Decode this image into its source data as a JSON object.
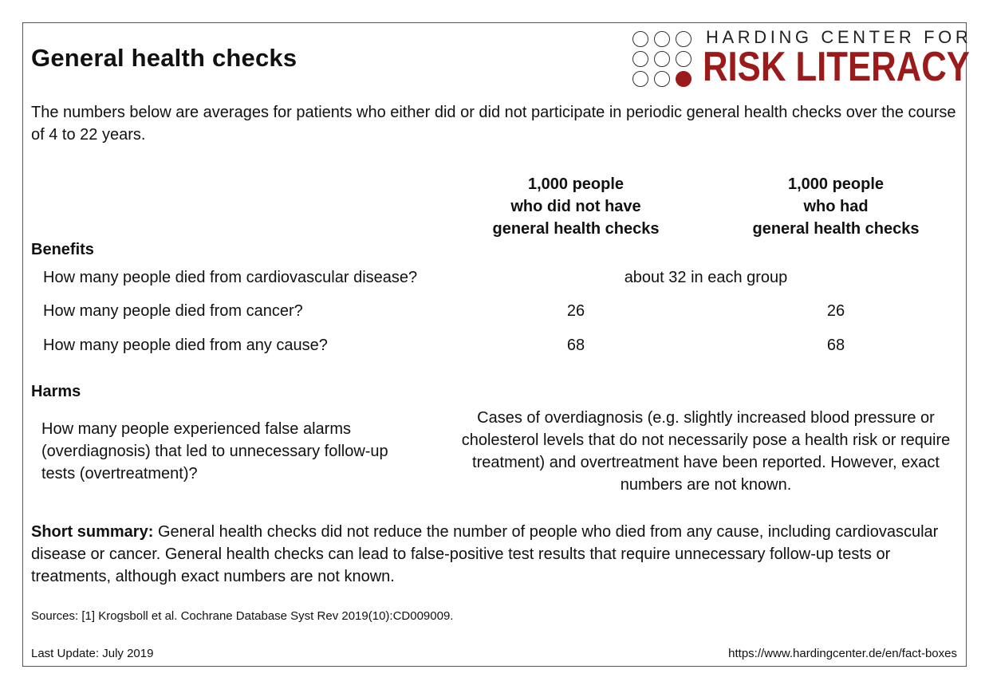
{
  "title": "General health checks",
  "intro": "The numbers below are averages for patients who either did or did not participate in periodic general health checks over the course of 4 to 22 years.",
  "logo": {
    "line1": "HARDING CENTER FOR",
    "line2": "RISK LITERACY",
    "accent_color": "#9b1b1b"
  },
  "columns": [
    {
      "line1": "1,000 people",
      "line2": "who did not have",
      "line3": "general health checks"
    },
    {
      "line1": "1,000 people",
      "line2": "who had",
      "line3": "general health checks"
    }
  ],
  "benefits": {
    "heading": "Benefits",
    "rows": [
      {
        "question": "How many people died from cardiovascular disease?",
        "merged": "about 32 in each group"
      },
      {
        "question": "How many people died from cancer?",
        "no_checks": "26",
        "checks": "26"
      },
      {
        "question": "How many people died from any cause?",
        "no_checks": "68",
        "checks": "68"
      }
    ]
  },
  "harms": {
    "heading": "Harms",
    "question": "How many people experienced false alarms (overdiagnosis) that led to unnecessary follow-up tests (overtreatment)?",
    "answer": "Cases of overdiagnosis (e.g. slightly increased blood pressure or cholesterol levels that do not necessarily pose a health risk or require treatment) and overtreatment have been reported. However, exact numbers are not known."
  },
  "summary": {
    "label": "Short summary:",
    "text": "General health checks did not reduce the number of people who died from any cause, including cardiovascular disease or cancer. General health checks can lead to false-positive test results that require unnecessary follow-up tests or treatments, although exact numbers are not known."
  },
  "sources": "Sources: [1] Krogsboll et al. Cochrane Database Syst Rev 2019(10):CD009009.",
  "last_update": "Last Update: July 2019",
  "url": "https://www.hardingcenter.de/en/fact-boxes"
}
